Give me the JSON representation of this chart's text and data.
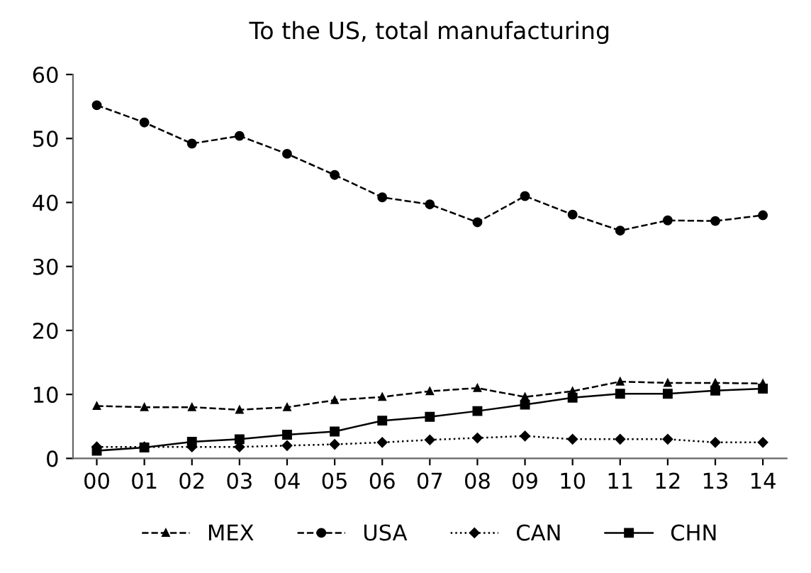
{
  "chart_data": {
    "type": "line",
    "title": "To the US, total manufacturing",
    "categories": [
      "00",
      "01",
      "02",
      "03",
      "04",
      "05",
      "06",
      "07",
      "08",
      "09",
      "10",
      "11",
      "12",
      "13",
      "14"
    ],
    "series": [
      {
        "name": "MEX",
        "color": "#000000",
        "marker": "triangle",
        "line_style": "dashed",
        "values": [
          8.2,
          8.0,
          8.0,
          7.6,
          8.0,
          9.1,
          9.6,
          10.5,
          11.0,
          9.6,
          10.5,
          12.0,
          11.8,
          11.8,
          11.7
        ]
      },
      {
        "name": "USA",
        "color": "#000000",
        "marker": "circle",
        "line_style": "dashed",
        "values": [
          55.2,
          52.5,
          49.2,
          50.4,
          47.6,
          44.3,
          40.8,
          39.7,
          36.9,
          41.0,
          38.1,
          35.6,
          37.2,
          37.1,
          38.0
        ]
      },
      {
        "name": "CAN",
        "color": "#000000",
        "marker": "diamond",
        "line_style": "dotted",
        "values": [
          1.8,
          1.8,
          1.8,
          1.8,
          2.0,
          2.2,
          2.5,
          2.9,
          3.2,
          3.5,
          3.0,
          3.0,
          3.0,
          2.5,
          2.5
        ]
      },
      {
        "name": "CHN",
        "color": "#000000",
        "marker": "square",
        "line_style": "solid",
        "values": [
          1.2,
          1.7,
          2.6,
          3.0,
          3.7,
          4.2,
          5.9,
          6.5,
          7.4,
          8.4,
          9.5,
          10.1,
          10.1,
          10.6,
          10.9
        ]
      }
    ],
    "ylim": [
      0,
      60
    ],
    "yticks": [
      0,
      10,
      20,
      30,
      40,
      50,
      60
    ],
    "grid": false,
    "legend": "bottom"
  }
}
